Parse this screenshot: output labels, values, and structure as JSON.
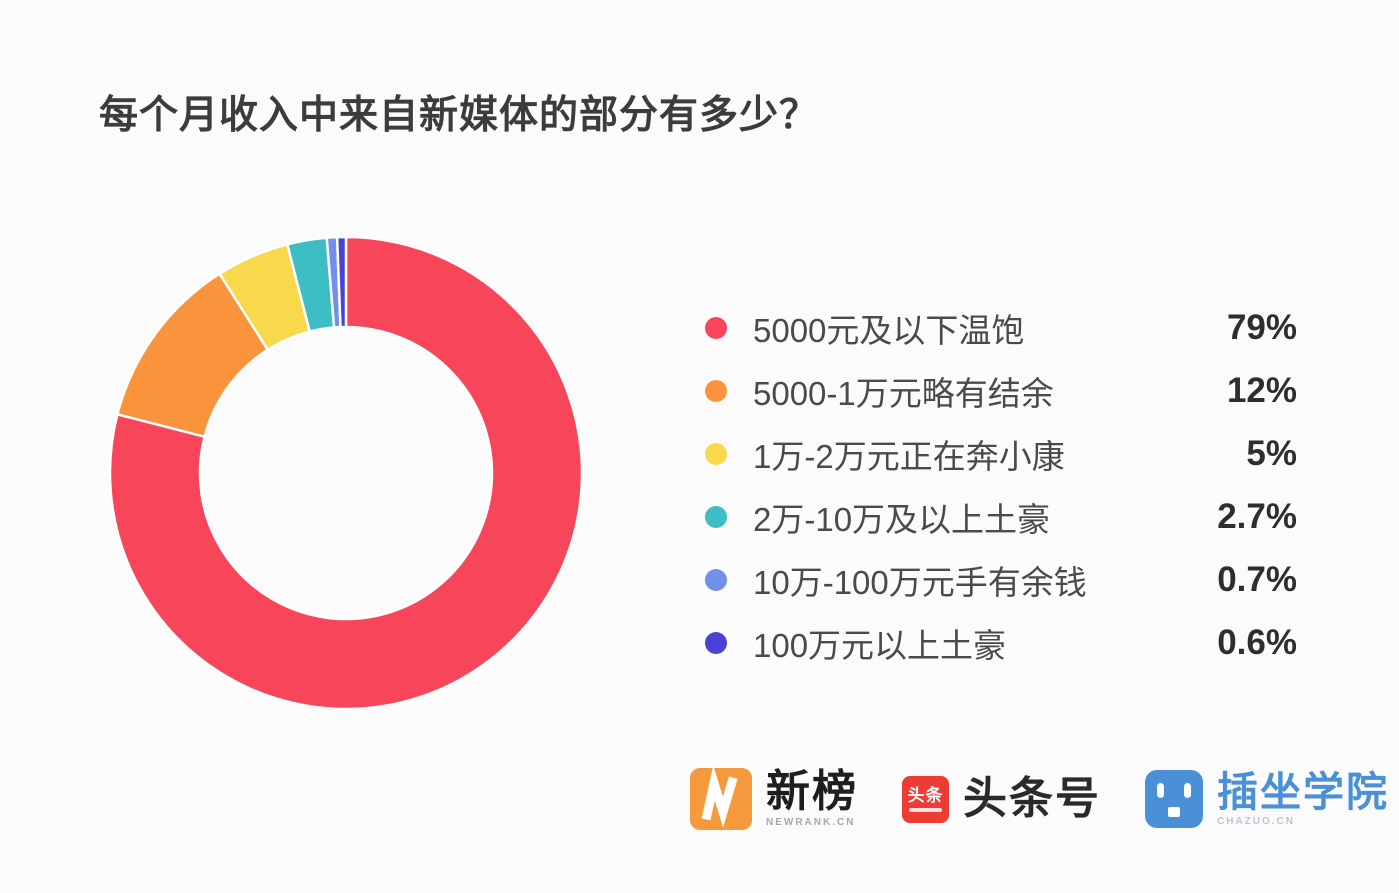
{
  "title": "每个月收入中来自新媒体的部分有多少？",
  "chart_data": {
    "type": "pie",
    "donut": true,
    "title": "每个月收入中来自新媒体的部分有多少？",
    "legend_position": "right",
    "start_angle": "top, clockwise",
    "inner_radius_ratio": 0.62,
    "gap_color": "#FFFFFF",
    "segments": [
      {
        "label": "5000元及以下温饱",
        "value": 79,
        "percent_label": "79%",
        "color": "#F7455A"
      },
      {
        "label": "5000-1万元略有结余",
        "value": 12,
        "percent_label": "12%",
        "color": "#F9943C"
      },
      {
        "label": "1万-2万元正在奔小康",
        "value": 5,
        "percent_label": "5%",
        "color": "#F8D94C"
      },
      {
        "label": "2万-10万及以上土豪",
        "value": 2.7,
        "percent_label": "2.7%",
        "color": "#3DBEC4"
      },
      {
        "label": "10万-100万元手有余钱",
        "value": 0.7,
        "percent_label": "0.7%",
        "color": "#7190EA"
      },
      {
        "label": "100万元以上土豪",
        "value": 0.6,
        "percent_label": "0.6%",
        "color": "#4B41D6"
      }
    ]
  },
  "footer": {
    "logos": [
      {
        "id": "newrank",
        "icon_letter": "N",
        "icon_color": "#F5993D",
        "text": "新榜",
        "subtext": "NEWRANK.CN"
      },
      {
        "id": "toutiao",
        "icon_text": "头条",
        "icon_color": "#EE3B34",
        "text": "头条号"
      },
      {
        "id": "chazuo",
        "icon_color": "#4A90D6",
        "text": "插坐学院",
        "text_color": "#4A90D6",
        "subtext": "CHAZUO.CN"
      }
    ]
  }
}
